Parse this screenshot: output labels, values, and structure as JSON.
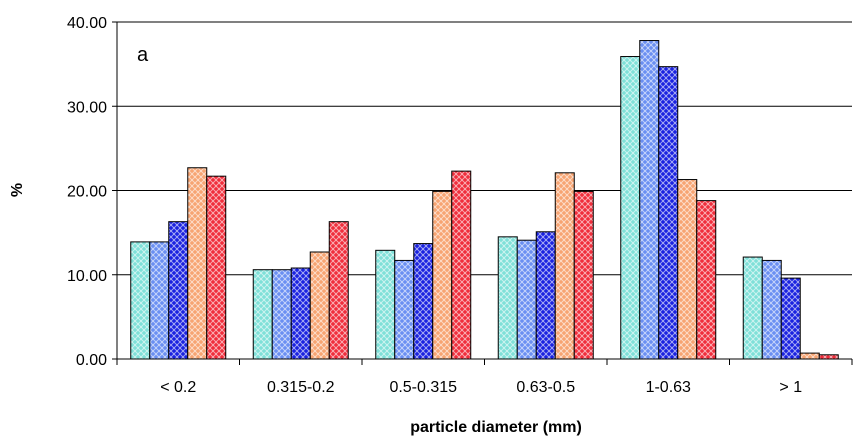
{
  "chart_data": {
    "type": "bar",
    "panel_label": "a",
    "title": "",
    "xlabel": "particle diameter (mm)",
    "ylabel": "%",
    "ylim": [
      0,
      40
    ],
    "yticks": [
      "0.00",
      "10.00",
      "20.00",
      "30.00",
      "40.00"
    ],
    "grid": true,
    "legend": "none",
    "categories": [
      "< 0.2",
      "0.315-0.2",
      "0.5-0.315",
      "0.63-0.5",
      "1-0.63",
      "> 1"
    ],
    "series": [
      {
        "values": [
          13.9,
          10.6,
          12.9,
          14.5,
          35.9,
          12.1
        ],
        "color": "#7fe0d8",
        "pattern": "crosshatch"
      },
      {
        "values": [
          13.9,
          10.6,
          11.7,
          14.1,
          37.8,
          11.7
        ],
        "color": "#6a8ff2",
        "pattern": "crosshatch"
      },
      {
        "values": [
          16.3,
          10.8,
          13.7,
          15.1,
          34.7,
          9.6
        ],
        "color": "#1a22e0",
        "pattern": "crosshatch"
      },
      {
        "values": [
          22.7,
          12.7,
          19.9,
          22.1,
          21.3,
          0.7
        ],
        "color": "#f7a472",
        "pattern": "crosshatch"
      },
      {
        "values": [
          21.7,
          16.3,
          22.3,
          19.9,
          18.8,
          0.5
        ],
        "color": "#f02e3c",
        "pattern": "crosshatch"
      }
    ]
  }
}
